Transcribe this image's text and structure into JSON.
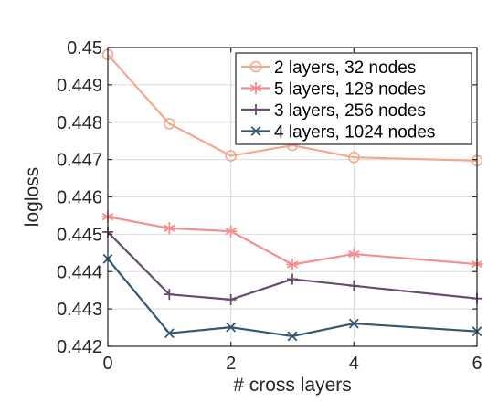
{
  "chart_data": {
    "type": "line",
    "xlabel": "# cross layers",
    "ylabel": "logloss",
    "xlim": [
      0,
      6
    ],
    "ylim": [
      0.442,
      0.45
    ],
    "xticks": [
      "0",
      "2",
      "4",
      "6"
    ],
    "yticks": [
      "0.442",
      "0.443",
      "0.444",
      "0.445",
      "0.446",
      "0.447",
      "0.448",
      "0.449",
      "0.45"
    ],
    "grid": true,
    "legend_position": "top-right",
    "series": [
      {
        "name": "2 layers, 32 nodes",
        "color": "#f4a78f",
        "marker": "circle",
        "x": [
          0,
          1,
          2,
          3,
          4,
          6
        ],
        "values": [
          0.44981,
          0.44796,
          0.4471,
          0.44738,
          0.44706,
          0.44697
        ]
      },
      {
        "name": "5 layers, 128 nodes",
        "color": "#f58f8f",
        "marker": "asterisk",
        "x": [
          0,
          1,
          2,
          3,
          4,
          6
        ],
        "values": [
          0.44547,
          0.44516,
          0.44508,
          0.44419,
          0.44447,
          0.4442
        ]
      },
      {
        "name": "3 layers, 256 nodes",
        "color": "#6a4c6e",
        "marker": "plus",
        "x": [
          0,
          1,
          2,
          3,
          4,
          6
        ],
        "values": [
          0.44506,
          0.44339,
          0.44325,
          0.4438,
          0.44362,
          0.44328
        ]
      },
      {
        "name": "4 layers, 1024 nodes",
        "color": "#355872",
        "marker": "x",
        "x": [
          0,
          1,
          2,
          3,
          4,
          6
        ],
        "values": [
          0.44434,
          0.44235,
          0.44251,
          0.44227,
          0.44261,
          0.4424
        ]
      }
    ]
  }
}
